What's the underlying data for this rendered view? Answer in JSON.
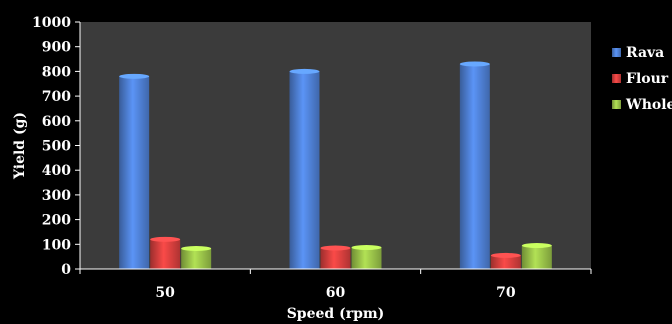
{
  "chart_data": {
    "type": "bar",
    "categories": [
      "50",
      "60",
      "70"
    ],
    "series": [
      {
        "name": "Rava",
        "values": [
          780,
          800,
          830
        ],
        "color": "#4f81d6"
      },
      {
        "name": "Flour",
        "values": [
          120,
          85,
          55
        ],
        "color": "#d9403f"
      },
      {
        "name": "Whole",
        "values": [
          83,
          87,
          95
        ],
        "color": "#9bc44a"
      }
    ],
    "xlabel": "Speed (rpm)",
    "ylabel": "Yield (g)",
    "ylim": [
      0,
      1000
    ],
    "yticks": [
      0,
      100,
      200,
      300,
      400,
      500,
      600,
      700,
      800,
      900,
      1000
    ],
    "grid": false,
    "legend": "right",
    "plot_background": "#3b3b3b",
    "page_background": "#000000"
  }
}
